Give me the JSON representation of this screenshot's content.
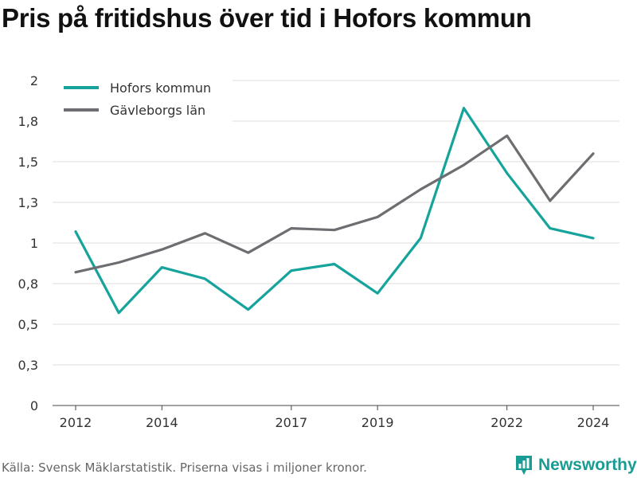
{
  "header": {
    "title": "Pris på fritidshus över tid i Hofors kommun"
  },
  "footer": {
    "source": "Källa: Svensk Mäklarstatistik. Priserna visas i miljoner kronor."
  },
  "brand": {
    "name": "Newsworthy",
    "icon": "bar-chart-pin-icon",
    "color": "#199c94"
  },
  "chart_data": {
    "type": "line",
    "x": [
      2012,
      2013,
      2014,
      2015,
      2016,
      2017,
      2018,
      2019,
      2020,
      2021,
      2022,
      2023,
      2024
    ],
    "x_tick_values": [
      2012,
      2014,
      2017,
      2019,
      2022,
      2024
    ],
    "x_tick_labels": [
      "2012",
      "2014",
      "2017",
      "2019",
      "2022",
      "2024"
    ],
    "y_tick_values": [
      0,
      0.25,
      0.5,
      0.75,
      1,
      1.25,
      1.5,
      1.75,
      2
    ],
    "y_tick_labels": [
      "0",
      "0,3",
      "0,5",
      "0,8",
      "1",
      "1,3",
      "1,5",
      "1,8",
      "2"
    ],
    "ylim": [
      0,
      2
    ],
    "grid": true,
    "legend_position": "top-left",
    "series": [
      {
        "name": "Hofors kommun",
        "color": "#16a39b",
        "values": [
          1.07,
          0.57,
          0.85,
          0.78,
          0.59,
          0.83,
          0.87,
          0.69,
          1.03,
          1.83,
          1.43,
          1.09,
          1.03
        ]
      },
      {
        "name": "Gävleborgs län",
        "color": "#6d6d72",
        "values": [
          0.82,
          0.88,
          0.96,
          1.06,
          0.94,
          1.09,
          1.08,
          1.16,
          1.33,
          1.48,
          1.66,
          1.26,
          1.55
        ]
      }
    ]
  }
}
